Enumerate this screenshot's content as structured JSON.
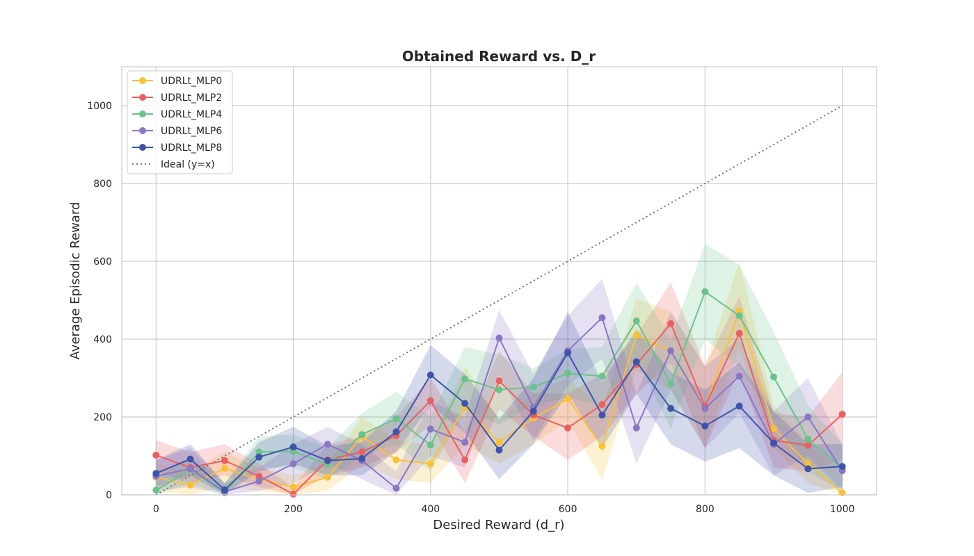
{
  "chart_data": {
    "type": "line",
    "title": "Obtained Reward vs. D_r",
    "xlabel": "Desired Reward (d_r)",
    "ylabel": "Average Episodic Reward",
    "xlim": [
      -50,
      1050
    ],
    "ylim": [
      0,
      1100
    ],
    "xticks": [
      0,
      200,
      400,
      600,
      800,
      1000
    ],
    "yticks": [
      0,
      200,
      400,
      600,
      800,
      1000
    ],
    "grid": true,
    "legend_position": "top-left",
    "x": [
      0,
      50,
      100,
      150,
      200,
      250,
      300,
      350,
      400,
      450,
      500,
      550,
      600,
      650,
      700,
      750,
      800,
      850,
      900,
      950,
      1000
    ],
    "series": [
      {
        "name": "UDRLt_MLP0",
        "color": "#f8c13a",
        "values": [
          45,
          25,
          68,
          40,
          20,
          45,
          150,
          90,
          80,
          225,
          135,
          197,
          247,
          125,
          410,
          370,
          225,
          472,
          170,
          80,
          5
        ],
        "lower": [
          10,
          0,
          20,
          10,
          0,
          10,
          80,
          40,
          30,
          130,
          80,
          130,
          190,
          40,
          320,
          270,
          120,
          380,
          120,
          30,
          0
        ],
        "upper": [
          80,
          60,
          110,
          70,
          50,
          80,
          200,
          140,
          130,
          330,
          195,
          260,
          300,
          220,
          505,
          470,
          330,
          600,
          230,
          140,
          60
        ]
      },
      {
        "name": "UDRLt_MLP2",
        "color": "#e86161",
        "values": [
          102,
          70,
          88,
          48,
          2,
          90,
          110,
          152,
          242,
          90,
          293,
          205,
          172,
          232,
          335,
          440,
          228,
          415,
          140,
          127,
          207
        ],
        "lower": [
          60,
          30,
          50,
          20,
          0,
          50,
          70,
          110,
          180,
          30,
          220,
          150,
          90,
          150,
          260,
          340,
          120,
          320,
          70,
          60,
          90
        ],
        "upper": [
          140,
          110,
          130,
          80,
          20,
          130,
          150,
          200,
          300,
          160,
          370,
          260,
          260,
          310,
          410,
          545,
          330,
          510,
          210,
          200,
          315
        ]
      },
      {
        "name": "UDRLt_MLP4",
        "color": "#6cc28b",
        "values": [
          12,
          65,
          5,
          110,
          112,
          78,
          155,
          196,
          128,
          298,
          270,
          277,
          312,
          305,
          447,
          285,
          522,
          460,
          303,
          143,
          67
        ],
        "lower": [
          0,
          30,
          0,
          70,
          70,
          40,
          100,
          130,
          60,
          220,
          180,
          230,
          250,
          230,
          350,
          170,
          400,
          330,
          190,
          60,
          10
        ],
        "upper": [
          40,
          100,
          30,
          150,
          155,
          120,
          210,
          265,
          200,
          380,
          360,
          325,
          375,
          380,
          545,
          400,
          645,
          590,
          420,
          230,
          130
        ]
      },
      {
        "name": "UDRLt_MLP6",
        "color": "#8b76c4",
        "values": [
          48,
          67,
          8,
          35,
          80,
          130,
          88,
          17,
          169,
          135,
          403,
          225,
          370,
          455,
          172,
          370,
          222,
          305,
          130,
          200,
          62
        ],
        "lower": [
          10,
          20,
          0,
          10,
          30,
          80,
          40,
          0,
          100,
          70,
          310,
          140,
          280,
          350,
          80,
          270,
          120,
          210,
          50,
          100,
          10
        ],
        "upper": [
          90,
          120,
          30,
          70,
          130,
          175,
          130,
          60,
          240,
          200,
          475,
          310,
          460,
          555,
          260,
          470,
          330,
          400,
          215,
          300,
          130
        ]
      },
      {
        "name": "UDRLt_MLP8",
        "color": "#3f54a8",
        "values": [
          55,
          92,
          13,
          97,
          123,
          88,
          93,
          162,
          308,
          235,
          115,
          215,
          365,
          205,
          342,
          222,
          177,
          228,
          133,
          67,
          73
        ],
        "lower": [
          20,
          50,
          0,
          60,
          80,
          50,
          50,
          110,
          230,
          160,
          40,
          130,
          260,
          120,
          260,
          130,
          85,
          120,
          50,
          5,
          20
        ],
        "upper": [
          90,
          130,
          30,
          135,
          175,
          125,
          135,
          215,
          385,
          310,
          195,
          300,
          470,
          290,
          425,
          315,
          270,
          340,
          215,
          130,
          130
        ]
      }
    ],
    "reference_line": {
      "name": "Ideal (y=x)",
      "color": "#707070",
      "x": [
        0,
        1000
      ],
      "y": [
        0,
        1000
      ]
    }
  }
}
